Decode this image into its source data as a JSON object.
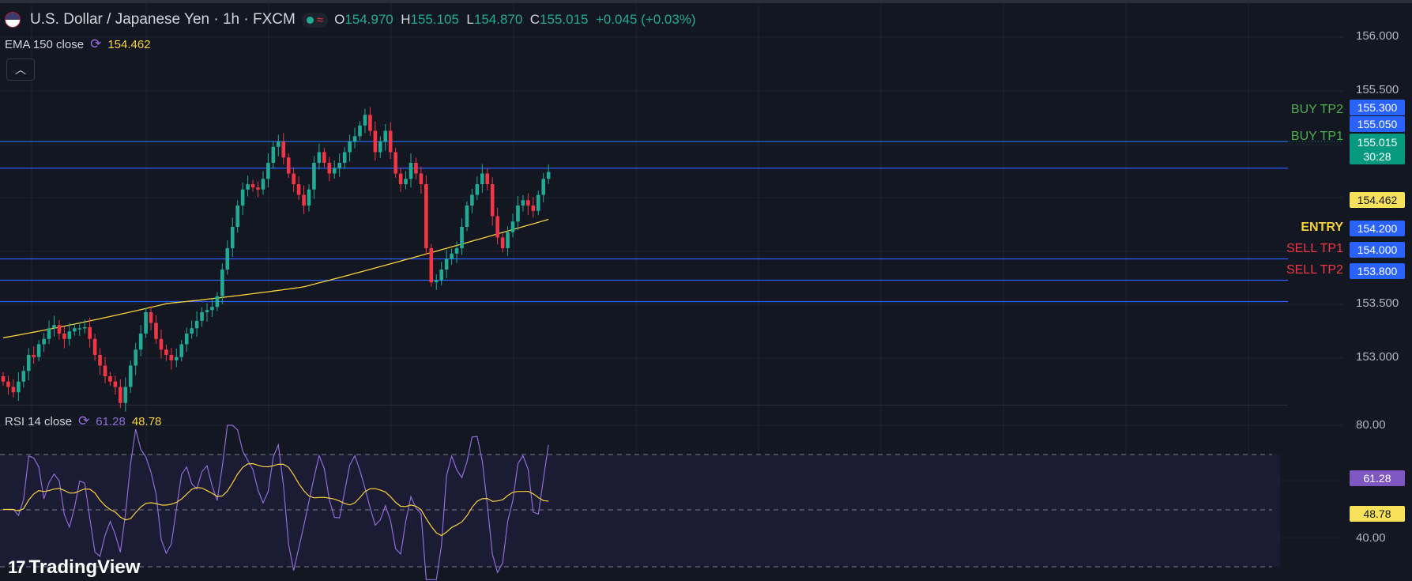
{
  "header": {
    "symbol_title": "U.S. Dollar / Japanese Yen · 1h · FXCM",
    "ohlc": {
      "o_label": "O",
      "o_value": "154.970",
      "h_label": "H",
      "h_value": "155.105",
      "l_label": "L",
      "l_value": "154.870",
      "c_label": "C",
      "c_value": "155.015",
      "change": "+0.045 (+0.03%)"
    }
  },
  "ema": {
    "name": "EMA 150 close",
    "value": "154.462"
  },
  "rsi": {
    "name": "RSI 14 close",
    "value": "61.28",
    "ma_value": "48.78"
  },
  "price_axis": {
    "ticks": [
      "156.000",
      "155.500",
      "153.500",
      "153.000"
    ],
    "rsi_ticks": [
      "80.00",
      "40.00"
    ]
  },
  "levels": [
    {
      "label": "BUY TP2",
      "price": "155.300",
      "color": "#4caf50"
    },
    {
      "label": "BUY TP1",
      "price": "155.050",
      "color": "#4caf50"
    },
    {
      "label": "ENTRY",
      "price": "154.200",
      "color": "#f7d23b"
    },
    {
      "label": "SELL TP1",
      "price": "154.000",
      "color": "#f23645"
    },
    {
      "label": "SELL TP2",
      "price": "153.800",
      "color": "#f23645"
    }
  ],
  "current_price": {
    "price": "155.015",
    "countdown": "30:28"
  },
  "ema_tag": "154.462",
  "rsi_tags": {
    "rsi": "61.28",
    "ma": "48.78"
  },
  "branding": {
    "logo_text": "TradingView",
    "logo_mark": "17"
  },
  "colors": {
    "up": "#22ab94",
    "down": "#f23645",
    "ema": "#f7d23b",
    "rsi": "#8e6cd6",
    "level_line": "#2962ff"
  }
}
